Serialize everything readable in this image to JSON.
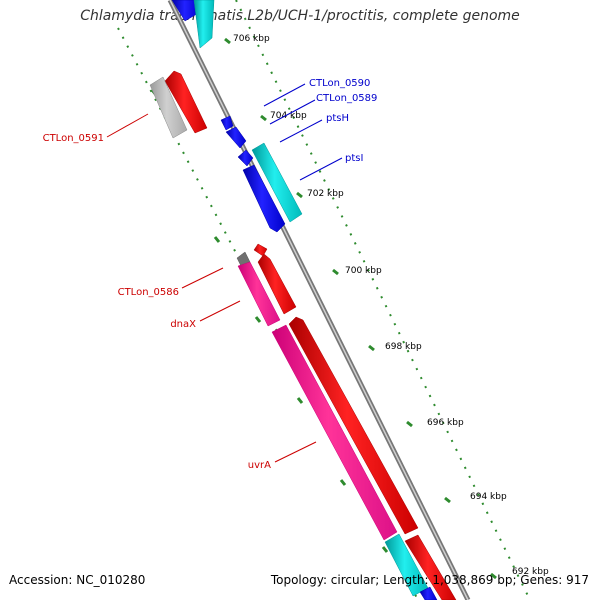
{
  "title": "Chlamydia trachomatis L2b/UCH-1/proctitis, complete genome",
  "footer": {
    "accession": "Accession: NC_010280",
    "stats": "Topology: circular; Length: 1,038,869 bp; Genes: 917"
  },
  "scale_labels": [
    "706 kbp",
    "704 kbp",
    "702 kbp",
    "700 kbp",
    "698 kbp",
    "696 kbp",
    "694 kbp",
    "692 kbp"
  ],
  "gene_labels": [
    {
      "text": "CTLon_0590",
      "color": "#0000cc"
    },
    {
      "text": "CTLon_0589",
      "color": "#0000cc"
    },
    {
      "text": "ptsH",
      "color": "#0000cc"
    },
    {
      "text": "ptsI",
      "color": "#0000cc"
    },
    {
      "text": "CTLon_0591",
      "color": "#cc0000"
    },
    {
      "text": "CTLon_0586",
      "color": "#cc0000"
    },
    {
      "text": "dnaX",
      "color": "#cc0000"
    },
    {
      "text": "uvrA",
      "color": "#cc0000"
    }
  ],
  "colors": {
    "backbone": "#888888",
    "forward_gene": "#ff0000",
    "reverse_gene": "#0000ff",
    "cyan_feature": "#00cccc",
    "magenta_feature": "#ff1493",
    "gray_feature": "#b0b0b0",
    "tick": "#2e8b2e"
  }
}
